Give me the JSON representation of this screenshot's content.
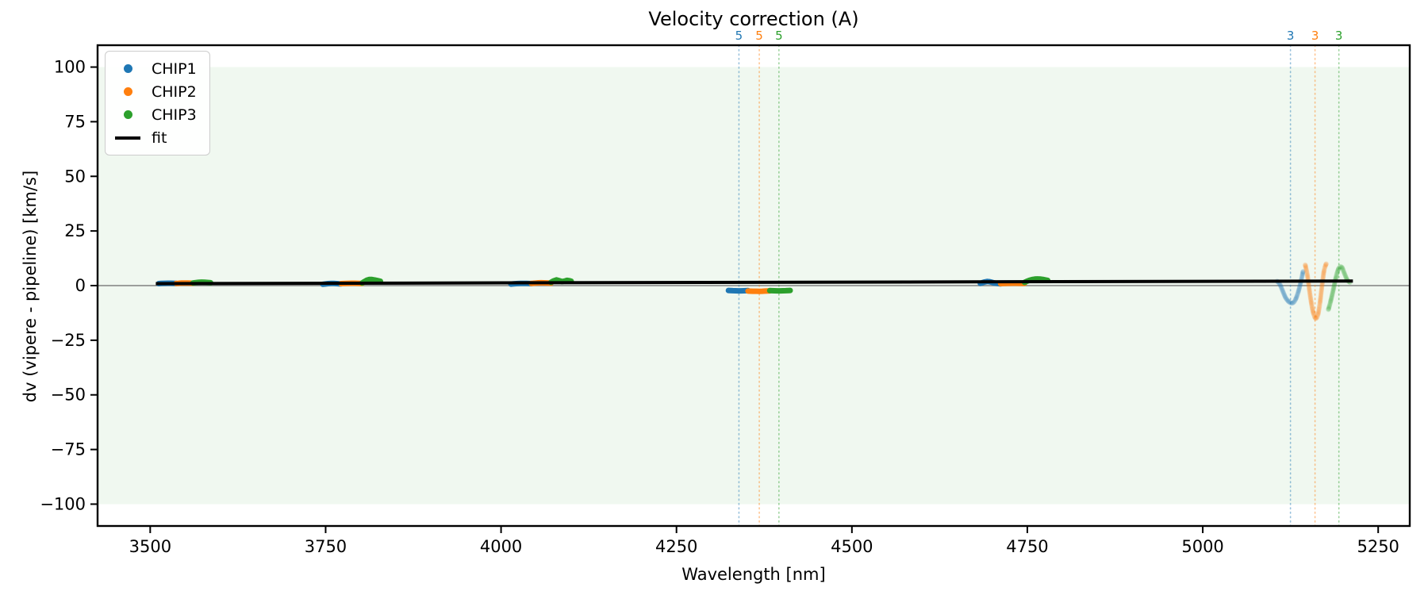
{
  "chart_data": {
    "type": "scatter",
    "title": "Velocity correction (A)",
    "xlabel": "Wavelength [nm]",
    "ylabel": "dv (vipere - pipeline) [km/s]",
    "xlim": [
      3425,
      5295
    ],
    "ylim": [
      -110,
      110
    ],
    "xticks": [
      3500,
      3750,
      4000,
      4250,
      4500,
      4750,
      5000,
      5250
    ],
    "yticks": [
      100,
      75,
      50,
      25,
      0,
      -25,
      -50,
      -75,
      -100
    ],
    "grid": false,
    "legend_position": "upper left",
    "shaded_band": {
      "ymin": -100,
      "ymax": 100,
      "color": "#2ca02c",
      "alpha": 0.07
    },
    "zero_line": {
      "y": 0,
      "color": "#808080"
    },
    "fit_line": {
      "label": "fit",
      "color": "#000000",
      "x": [
        3508,
        5214
      ],
      "y": [
        0.9,
        2.1
      ]
    },
    "legend": [
      {
        "label": "CHIP1",
        "color": "#1f77b4",
        "marker": "dot"
      },
      {
        "label": "CHIP2",
        "color": "#ff7f0e",
        "marker": "dot"
      },
      {
        "label": "CHIP3",
        "color": "#2ca02c",
        "marker": "dot"
      },
      {
        "label": "fit",
        "color": "#000000",
        "marker": "line"
      }
    ],
    "order_markers": [
      {
        "x": 4339,
        "label": "5",
        "color": "#1f77b4"
      },
      {
        "x": 4368,
        "label": "5",
        "color": "#ff7f0e"
      },
      {
        "x": 4396,
        "label": "5",
        "color": "#2ca02c"
      },
      {
        "x": 5125,
        "label": "3",
        "color": "#1f77b4"
      },
      {
        "x": 5160,
        "label": "3",
        "color": "#ff7f0e"
      },
      {
        "x": 5194,
        "label": "3",
        "color": "#2ca02c"
      }
    ],
    "series": [
      {
        "name": "CHIP1",
        "color": "#1f77b4",
        "segments": [
          [
            [
              3512,
              0.9
            ],
            [
              3525,
              1.1
            ],
            [
              3537,
              1.0
            ]
          ],
          [
            [
              3746,
              0.6
            ],
            [
              3758,
              1.0
            ],
            [
              3772,
              0.8
            ]
          ],
          [
            [
              4014,
              0.7
            ],
            [
              4028,
              1.0
            ],
            [
              4043,
              0.9
            ]
          ],
          [
            [
              4324,
              -2.2
            ],
            [
              4338,
              -2.4
            ],
            [
              4352,
              -2.3
            ]
          ],
          [
            [
              4683,
              1.0
            ],
            [
              4693,
              1.9
            ],
            [
              4703,
              1.2
            ],
            [
              4712,
              0.8
            ]
          ]
        ],
        "wiggle": [
          [
            5106,
            2.0
          ],
          [
            5110,
            0.5
          ],
          [
            5114,
            -2.5
          ],
          [
            5118,
            -5.5
          ],
          [
            5123,
            -7.5
          ],
          [
            5128,
            -8.0
          ],
          [
            5132,
            -6.5
          ],
          [
            5136,
            -3.0
          ],
          [
            5140,
            2.0
          ],
          [
            5143,
            6.5
          ]
        ]
      },
      {
        "name": "CHIP2",
        "color": "#ff7f0e",
        "segments": [
          [
            [
              3537,
              1.0
            ],
            [
              3549,
              1.2
            ],
            [
              3561,
              1.1
            ]
          ],
          [
            [
              3772,
              0.9
            ],
            [
              3787,
              1.1
            ],
            [
              3802,
              1.0
            ]
          ],
          [
            [
              4043,
              1.0
            ],
            [
              4057,
              1.3
            ],
            [
              4071,
              1.1
            ]
          ],
          [
            [
              4352,
              -2.5
            ],
            [
              4368,
              -2.6
            ],
            [
              4383,
              -2.4
            ]
          ],
          [
            [
              4712,
              0.9
            ],
            [
              4729,
              1.1
            ],
            [
              4746,
              1.0
            ]
          ]
        ],
        "wiggle": [
          [
            5146,
            9.5
          ],
          [
            5149,
            5.0
          ],
          [
            5152,
            -2.0
          ],
          [
            5155,
            -8.5
          ],
          [
            5158,
            -13.0
          ],
          [
            5161,
            -15.0
          ],
          [
            5164,
            -13.5
          ],
          [
            5167,
            -8.0
          ],
          [
            5170,
            0.0
          ],
          [
            5173,
            7.0
          ],
          [
            5176,
            10.0
          ]
        ]
      },
      {
        "name": "CHIP3",
        "color": "#2ca02c",
        "segments": [
          [
            [
              3561,
              1.2
            ],
            [
              3573,
              1.6
            ],
            [
              3586,
              1.3
            ]
          ],
          [
            [
              3802,
              1.2
            ],
            [
              3809,
              2.5
            ],
            [
              3816,
              2.8
            ],
            [
              3828,
              2.0
            ]
          ],
          [
            [
              4071,
              1.5
            ],
            [
              4079,
              2.6
            ],
            [
              4087,
              1.8
            ],
            [
              4094,
              2.4
            ],
            [
              4100,
              2.0
            ]
          ],
          [
            [
              4383,
              -2.3
            ],
            [
              4398,
              -2.4
            ],
            [
              4412,
              -2.2
            ]
          ],
          [
            [
              4746,
              1.5
            ],
            [
              4757,
              2.8
            ],
            [
              4768,
              3.0
            ],
            [
              4779,
              2.4
            ]
          ]
        ],
        "wiggle": [
          [
            5179,
            -11.0
          ],
          [
            5182,
            -7.5
          ],
          [
            5186,
            -2.0
          ],
          [
            5190,
            4.0
          ],
          [
            5194,
            8.0
          ],
          [
            5198,
            8.5
          ],
          [
            5202,
            5.5
          ],
          [
            5206,
            2.5
          ],
          [
            5210,
            1.5
          ]
        ]
      }
    ]
  }
}
